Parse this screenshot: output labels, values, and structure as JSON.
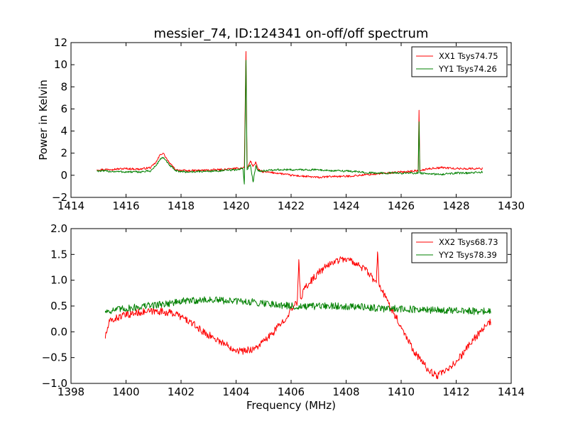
{
  "title": "messier_74, ID:124341 on-off/off spectrum",
  "xlabel": "Frequency (MHz)",
  "ylabel": "Power in Kelvin",
  "colors": {
    "red": "#ff0000",
    "green": "#008000"
  },
  "chart_data": [
    {
      "type": "line",
      "title": "messier_74, ID:124341 on-off/off spectrum",
      "ylabel": "Power in Kelvin",
      "xlim": [
        1414,
        1430
      ],
      "ylim": [
        -2,
        12
      ],
      "xticks": [
        "1414",
        "1416",
        "1418",
        "1420",
        "1422",
        "1424",
        "1426",
        "1428",
        "1430"
      ],
      "yticks": [
        "−2",
        "0",
        "2",
        "4",
        "6",
        "8",
        "10",
        "12"
      ],
      "legend_position": "top-right",
      "grid": false,
      "series": [
        {
          "name": "XX1 Tsys74.75",
          "color": "#ff0000",
          "x": [
            1414.95,
            1415.5,
            1416,
            1416.5,
            1416.9,
            1417.1,
            1417.25,
            1417.35,
            1417.55,
            1417.8,
            1418.2,
            1418.8,
            1419.4,
            1420,
            1420.3,
            1420.36,
            1420.4,
            1420.44,
            1420.52,
            1420.62,
            1420.72,
            1420.8,
            1421,
            1421.5,
            1422,
            1422.5,
            1423,
            1423.5,
            1424,
            1424.5,
            1425,
            1425.5,
            1426,
            1426.5,
            1426.62,
            1426.65,
            1426.68,
            1427,
            1427.5,
            1428,
            1428.5,
            1428.95
          ],
          "y": [
            0.5,
            0.55,
            0.6,
            0.55,
            0.7,
            1.2,
            1.9,
            2.0,
            1.2,
            0.5,
            0.4,
            0.45,
            0.5,
            0.6,
            0.7,
            11.2,
            0.7,
            0.8,
            1.3,
            0.8,
            1.2,
            0.5,
            0.3,
            0.2,
            0.0,
            -0.1,
            -0.2,
            -0.1,
            -0.1,
            0.0,
            0.1,
            0.2,
            0.3,
            0.4,
            0.4,
            5.8,
            0.4,
            0.6,
            0.7,
            0.6,
            0.6,
            0.6
          ]
        },
        {
          "name": "YY1 Tsys74.26",
          "color": "#008000",
          "x": [
            1414.95,
            1415.5,
            1416,
            1416.5,
            1416.9,
            1417.1,
            1417.25,
            1417.35,
            1417.55,
            1417.8,
            1418.2,
            1418.8,
            1419.4,
            1420,
            1420.25,
            1420.3,
            1420.36,
            1420.4,
            1420.44,
            1420.52,
            1420.62,
            1420.72,
            1420.8,
            1421,
            1421.5,
            1422,
            1422.5,
            1423,
            1423.5,
            1424,
            1424.5,
            1425,
            1425.5,
            1426,
            1426.5,
            1426.62,
            1426.65,
            1426.68,
            1427,
            1427.5,
            1428,
            1428.5,
            1428.95
          ],
          "y": [
            0.4,
            0.35,
            0.3,
            0.3,
            0.4,
            0.9,
            1.5,
            1.6,
            1.0,
            0.4,
            0.3,
            0.35,
            0.4,
            0.5,
            0.6,
            -0.8,
            10.4,
            0.5,
            0.7,
            0.9,
            -0.6,
            0.9,
            0.4,
            0.4,
            0.5,
            0.5,
            0.5,
            0.5,
            0.4,
            0.4,
            0.3,
            0.2,
            0.2,
            0.2,
            0.2,
            0.2,
            4.8,
            0.2,
            0.1,
            0.1,
            0.2,
            0.2,
            0.3
          ]
        }
      ]
    },
    {
      "type": "line",
      "xlabel": "Frequency (MHz)",
      "xlim": [
        1398,
        1414
      ],
      "ylim": [
        -1.0,
        2.0
      ],
      "xticks": [
        "1398",
        "1400",
        "1402",
        "1404",
        "1406",
        "1408",
        "1410",
        "1412",
        "1414"
      ],
      "yticks": [
        "−1.0",
        "−0.5",
        "0.0",
        "0.5",
        "1.0",
        "1.5",
        "2.0"
      ],
      "legend_position": "top-right",
      "grid": false,
      "series": [
        {
          "name": "XX2 Tsys68.73",
          "color": "#ff0000",
          "x": [
            1399.25,
            1399.4,
            1399.8,
            1400.5,
            1401.2,
            1401.8,
            1402.3,
            1402.8,
            1403.3,
            1403.8,
            1404.2,
            1404.7,
            1405.2,
            1405.7,
            1406.1,
            1406.22,
            1406.28,
            1406.34,
            1406.5,
            1407,
            1407.5,
            1407.9,
            1408.3,
            1408.7,
            1409.1,
            1409.14,
            1409.2,
            1409.5,
            1410,
            1410.5,
            1411,
            1411.3,
            1411.7,
            1412.2,
            1412.7,
            1413.25
          ],
          "y": [
            -0.1,
            0.2,
            0.3,
            0.38,
            0.4,
            0.35,
            0.2,
            0.0,
            -0.15,
            -0.3,
            -0.38,
            -0.32,
            -0.1,
            0.2,
            0.5,
            0.55,
            1.4,
            0.65,
            0.85,
            1.15,
            1.35,
            1.42,
            1.35,
            1.2,
            0.95,
            1.55,
            0.9,
            0.6,
            0.1,
            -0.4,
            -0.75,
            -0.85,
            -0.75,
            -0.45,
            -0.1,
            0.2
          ]
        },
        {
          "name": "YY2 Tsys78.39",
          "color": "#008000",
          "x": [
            1399.25,
            1400,
            1400.7,
            1401.5,
            1402.2,
            1403,
            1403.7,
            1404.5,
            1405.2,
            1405.9,
            1406.5,
            1407.2,
            1407.9,
            1408.6,
            1409.3,
            1410,
            1410.7,
            1411.4,
            1412.1,
            1412.8,
            1413.25
          ],
          "y": [
            0.4,
            0.45,
            0.5,
            0.55,
            0.6,
            0.62,
            0.6,
            0.58,
            0.55,
            0.5,
            0.48,
            0.5,
            0.5,
            0.48,
            0.45,
            0.45,
            0.42,
            0.42,
            0.4,
            0.4,
            0.4
          ]
        }
      ]
    }
  ]
}
